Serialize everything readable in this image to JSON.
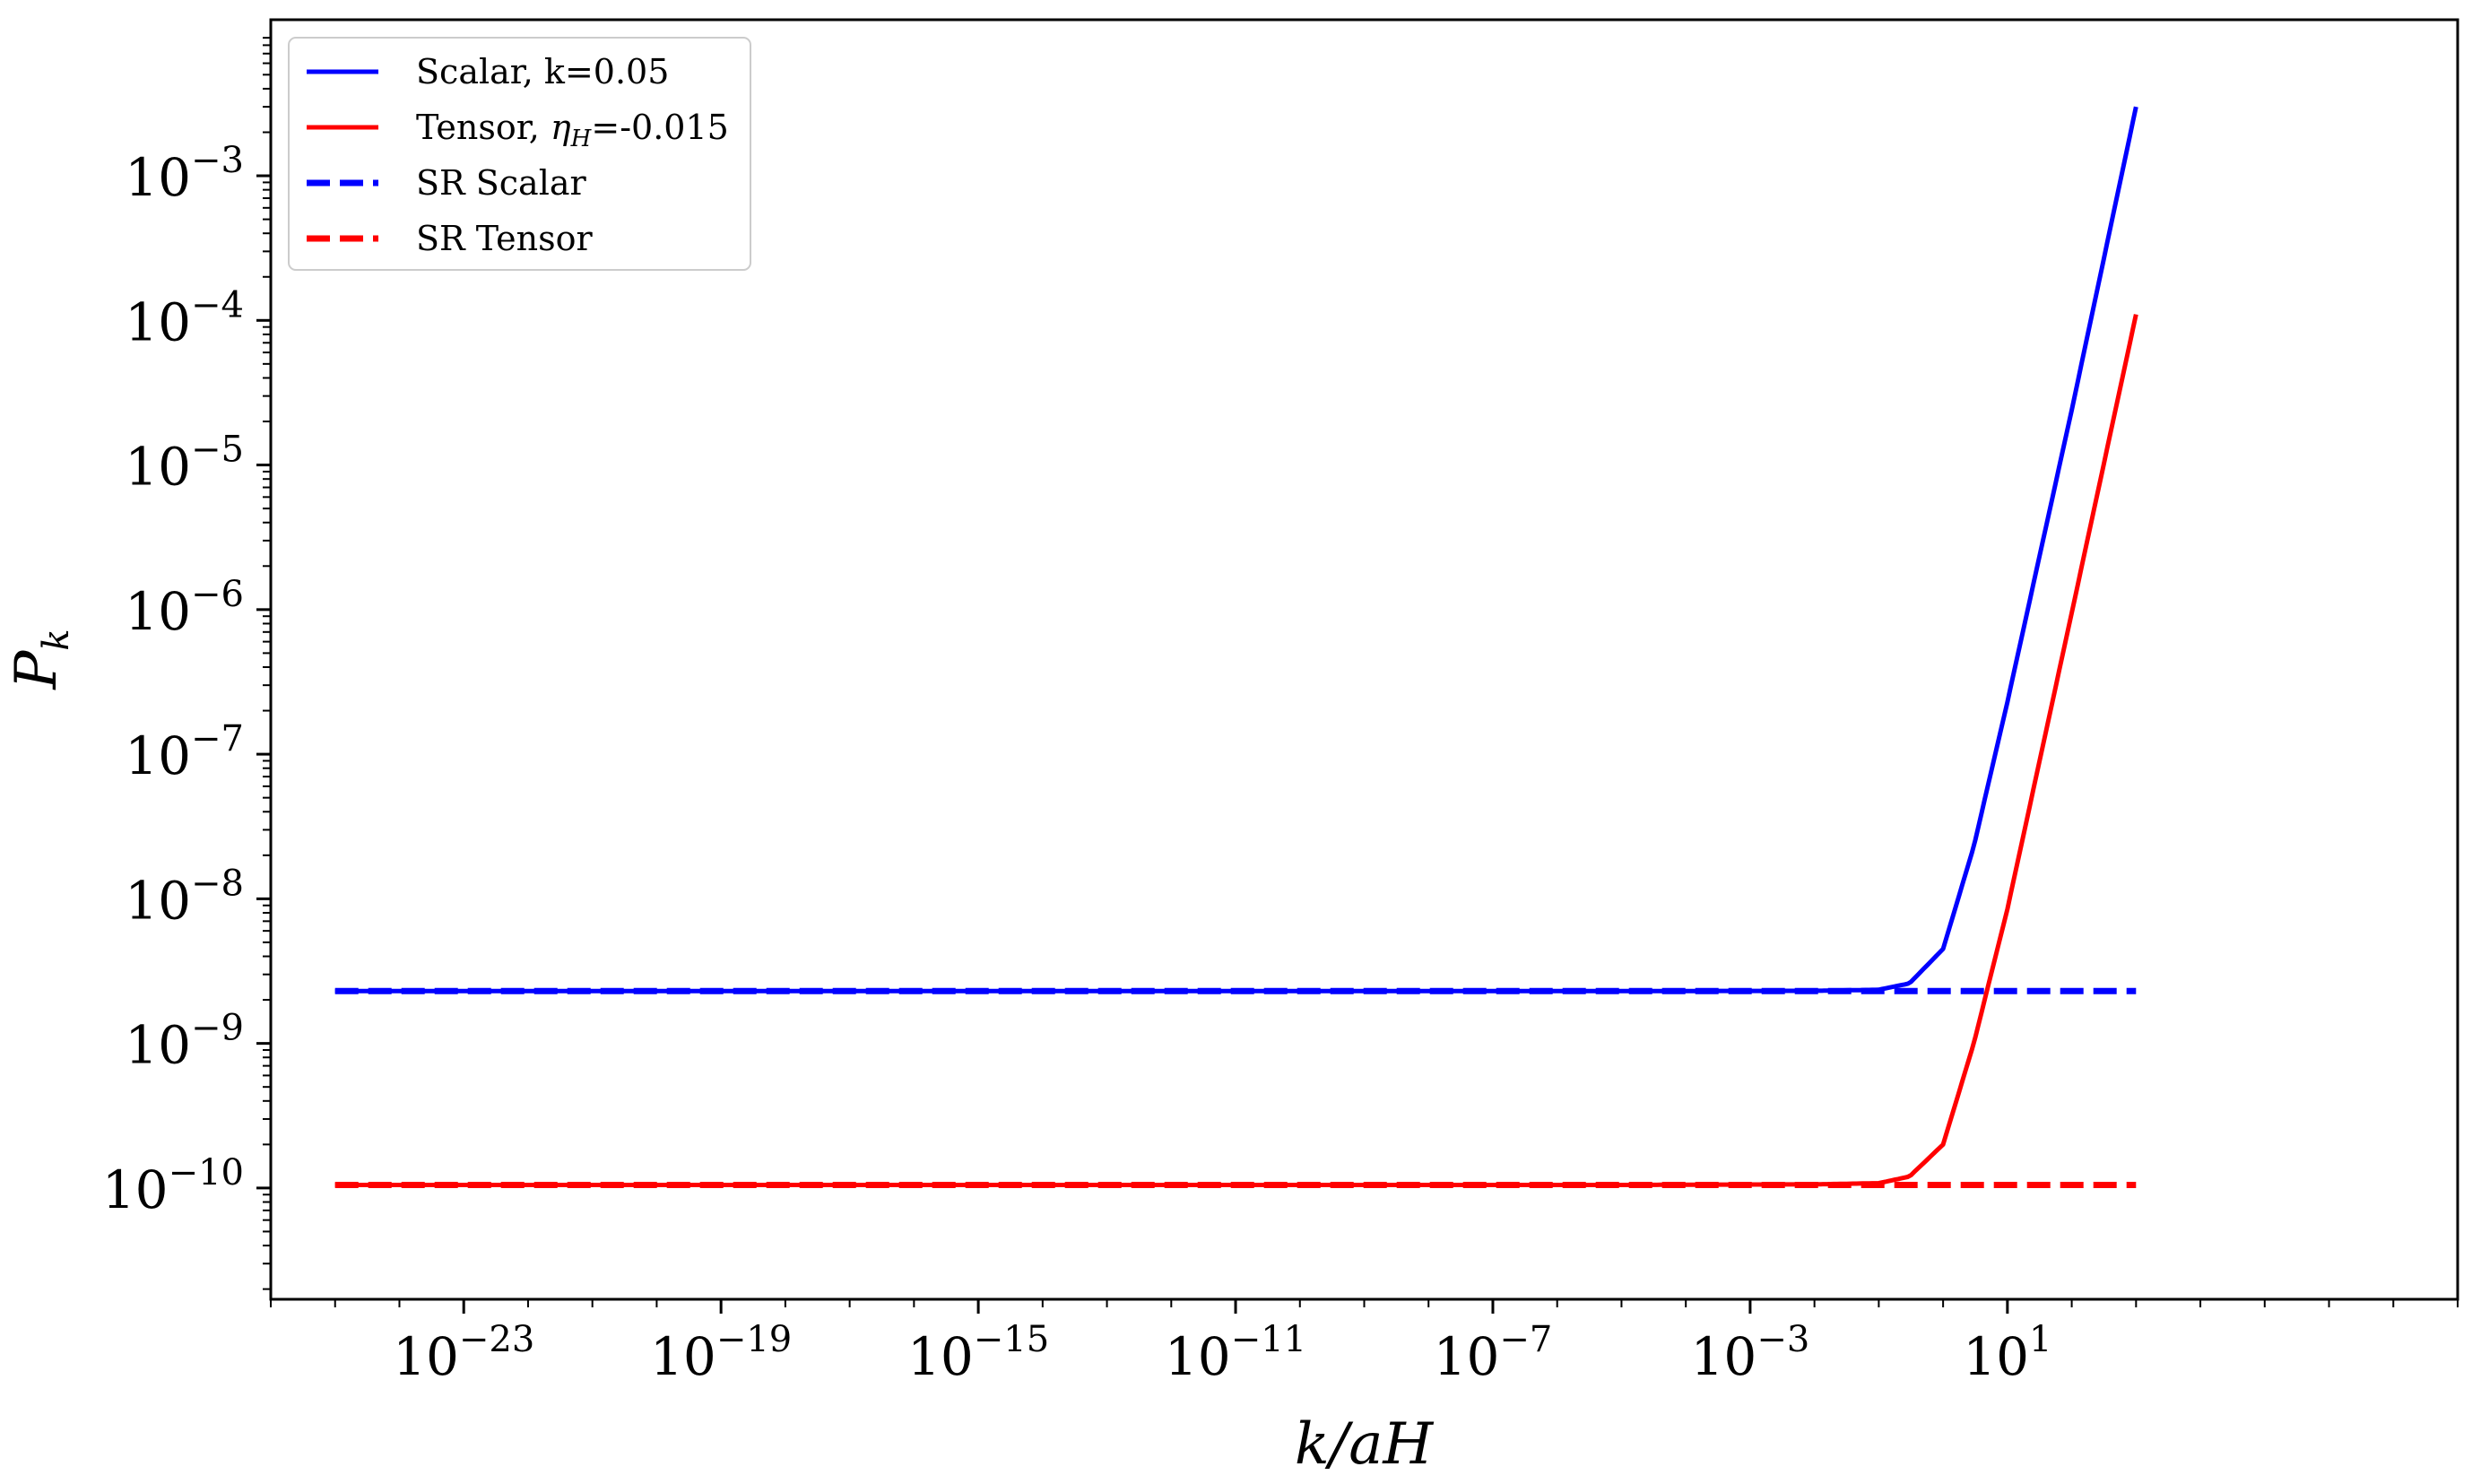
{
  "chart_data": {
    "type": "line",
    "xscale": "log",
    "yscale": "log",
    "xlabel": "k/aH",
    "ylabel": "P_k",
    "xlim": [
      1e-26,
      100000000.0
    ],
    "ylim": [
      1.7e-11,
      0.012
    ],
    "x_ticks": [
      {
        "value": 1e-23,
        "base": "10",
        "exp": "−23"
      },
      {
        "value": 1e-19,
        "base": "10",
        "exp": "−19"
      },
      {
        "value": 1e-15,
        "base": "10",
        "exp": "−15"
      },
      {
        "value": 1e-11,
        "base": "10",
        "exp": "−11"
      },
      {
        "value": 1e-07,
        "base": "10",
        "exp": "−7"
      },
      {
        "value": 0.001,
        "base": "10",
        "exp": "−3"
      },
      {
        "value": 10,
        "base": "10",
        "exp": "1"
      }
    ],
    "y_ticks": [
      {
        "value": 1e-10,
        "base": "10",
        "exp": "−10"
      },
      {
        "value": 1e-09,
        "base": "10",
        "exp": "−9"
      },
      {
        "value": 1e-08,
        "base": "10",
        "exp": "−8"
      },
      {
        "value": 1e-07,
        "base": "10",
        "exp": "−7"
      },
      {
        "value": 1e-06,
        "base": "10",
        "exp": "−6"
      },
      {
        "value": 1e-05,
        "base": "10",
        "exp": "−5"
      },
      {
        "value": 0.0001,
        "base": "10",
        "exp": "−4"
      },
      {
        "value": 0.001,
        "base": "10",
        "exp": "−3"
      }
    ],
    "series": [
      {
        "name": "Scalar, k=0.05",
        "color": "#0000ff",
        "dashed": false,
        "x": [
          1e-25,
          1e-15,
          1e-05,
          0.01,
          0.1,
          0.3,
          1,
          3,
          10,
          100,
          1000
        ],
        "y": [
          2.3e-09,
          2.3e-09,
          2.3e-09,
          2.31e-09,
          2.35e-09,
          2.6e-09,
          4.5e-09,
          2.3e-08,
          2.3e-07,
          2.4e-05,
          0.003
        ]
      },
      {
        "name": "Tensor, η_H=-0.015",
        "color": "#ff0000",
        "dashed": false,
        "x": [
          1e-25,
          1e-15,
          1e-05,
          0.01,
          0.1,
          0.3,
          1,
          3,
          10,
          100,
          1000
        ],
        "y": [
          1.05e-10,
          1.05e-10,
          1.05e-10,
          1.06e-10,
          1.08e-10,
          1.2e-10,
          2e-10,
          1e-09,
          8.5e-09,
          9.5e-07,
          0.00011
        ]
      },
      {
        "name": "SR Scalar",
        "color": "#0000ff",
        "dashed": true,
        "x": [
          1e-25,
          1000
        ],
        "y": [
          2.3e-09,
          2.3e-09
        ]
      },
      {
        "name": "SR Tensor",
        "color": "#ff0000",
        "dashed": true,
        "x": [
          1e-25,
          1000
        ],
        "y": [
          1.05e-10,
          1.05e-10
        ]
      }
    ],
    "legend": {
      "placement": "top-left",
      "entries": [
        {
          "label": "Scalar, k=0.05",
          "color": "#0000ff",
          "dashed": false
        },
        {
          "label": "Tensor, ηH=-0.015",
          "label_pre": "Tensor, ",
          "label_sym": "η",
          "label_sub": "H",
          "label_post": "=-0.015",
          "color": "#ff0000",
          "dashed": false
        },
        {
          "label": "SR Scalar",
          "color": "#0000ff",
          "dashed": true
        },
        {
          "label": "SR Tensor",
          "color": "#ff0000",
          "dashed": true
        }
      ]
    },
    "grid": false
  }
}
